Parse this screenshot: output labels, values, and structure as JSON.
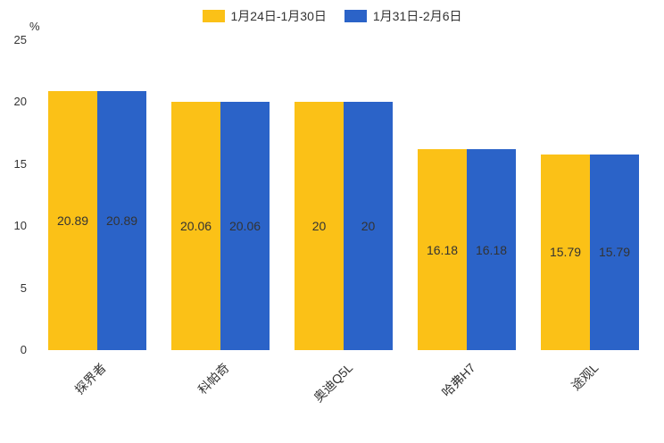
{
  "chart_data": {
    "type": "bar",
    "title": "",
    "categories": [
      "探界者",
      "科帕奇",
      "奥迪Q5L",
      "哈弗H7",
      "途观L"
    ],
    "series": [
      {
        "name": "1月24日-1月30日",
        "color": "#FBC117",
        "values": [
          20.89,
          20.06,
          20,
          16.18,
          15.79
        ]
      },
      {
        "name": "1月31日-2月6日",
        "color": "#2B63C8",
        "values": [
          20.89,
          20.06,
          20,
          16.18,
          15.79
        ]
      }
    ],
    "value_labels": [
      [
        "20.89",
        "20.06",
        "20",
        "16.18",
        "15.79"
      ],
      [
        "20.89",
        "20.06",
        "20",
        "16.18",
        "15.79"
      ]
    ],
    "xlabel": "",
    "ylabel": "%",
    "ylim": [
      0,
      25
    ],
    "yticks": [
      0,
      5,
      10,
      15,
      20,
      25
    ],
    "grid": false,
    "legend_position": "top"
  }
}
